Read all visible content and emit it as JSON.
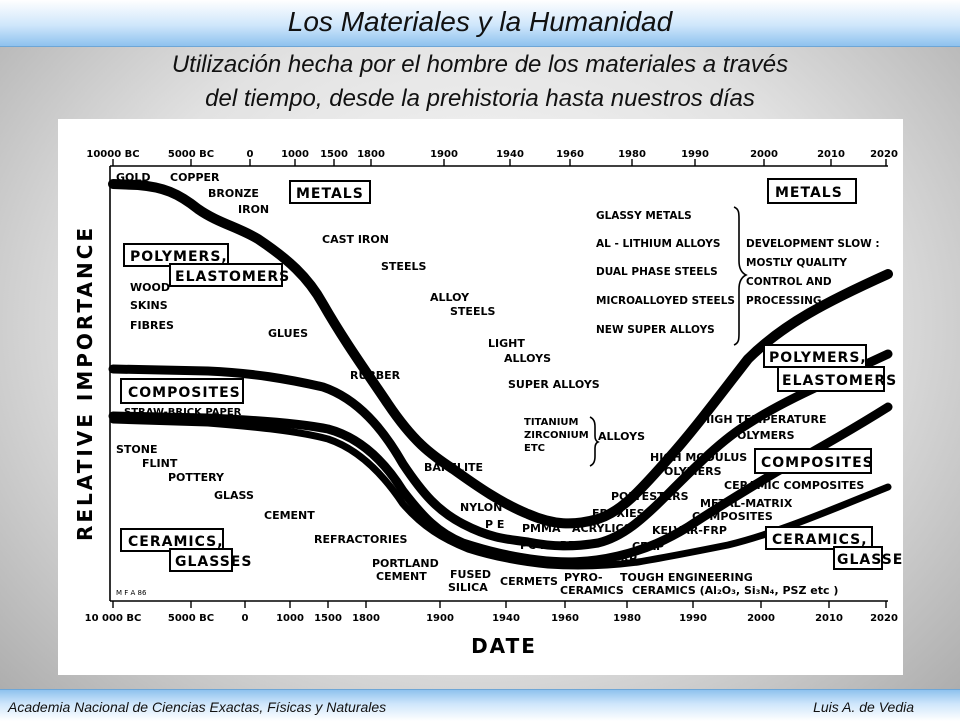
{
  "slide": {
    "title": "Los Materiales y la Humanidad",
    "subtitle_line1": "Utilización hecha por el hombre de los materiales a través",
    "subtitle_line2": "del tiempo, desde la prehistoria hasta nuestros días",
    "footer_left": "Academia Nacional de Ciencias Exactas, Físicas y Naturales",
    "footer_right": "Luis A. de Vedia"
  },
  "figure": {
    "xlabel": "DATE",
    "ylabel": "RELATIVE IMPORTANCE",
    "credit": "M F A 86",
    "ticks_top": [
      "10000 BC",
      "5000 BC",
      "0",
      "1000",
      "1500",
      "1800",
      "1900",
      "1940",
      "1960",
      "1980",
      "1990",
      "2000",
      "2010",
      "2020"
    ],
    "ticks_bottom": [
      "10 000 BC",
      "5000 BC",
      "0",
      "1000",
      "1500",
      "1800",
      "1900",
      "1940",
      "1960",
      "1980",
      "1990",
      "2000",
      "2010",
      "2020"
    ],
    "boxes": {
      "metals_left": "METALS",
      "metals_right": "METALS",
      "polymers_left_1": "POLYMERS,",
      "polymers_left_2": "ELASTOMERS",
      "polymers_right_1": "POLYMERS,",
      "polymers_right_2": "ELASTOMERS",
      "composites_left": "COMPOSITES",
      "composites_right": "COMPOSITES",
      "ceramics_left_1": "CERAMICS,",
      "ceramics_left_2": "GLASSES",
      "ceramics_right_1": "CERAMICS,",
      "ceramics_right_2": "GLASSES"
    },
    "labels": {
      "gold": "GOLD",
      "copper": "COPPER",
      "bronze": "BRONZE",
      "iron": "IRON",
      "cast_iron": "CAST IRON",
      "steels": "STEELS",
      "alloy": "ALLOY",
      "alloy_steels": "STEELS",
      "light": "LIGHT",
      "light_alloys": "ALLOYS",
      "super_alloys": "SUPER ALLOYS",
      "titanium": "TITANIUM",
      "zirconium": "ZIRCONIUM",
      "etc": "ETC",
      "ti_alloys": "ALLOYS",
      "wood": "WOOD",
      "skins": "SKINS",
      "fibres": "FIBRES",
      "glues": "GLUES",
      "rubber": "RUBBER",
      "bakelite": "BAKELITE",
      "nylon": "NYLON",
      "pe": "P E",
      "pmma": "PMMA",
      "pc_ps_pp": "PC  PS  PP",
      "acrylics": "ACRYLICS",
      "epoxies": "EPOXIES",
      "polyesters": "POLYESTERS",
      "high_modulus_1": "HIGH MODULUS",
      "high_modulus_2": "POLYMERS",
      "high_temp_1": "HIGH TEMPERATURE",
      "high_temp_2": "POLYMERS",
      "straw_brick": "STRAW-BRICK  PAPER",
      "stone": "STONE",
      "flint": "FLINT",
      "pottery": "POTTERY",
      "glass": "GLASS",
      "cement": "CEMENT",
      "refractories": "REFRACTORIES",
      "portland_1": "PORTLAND",
      "portland_2": "CEMENT",
      "fused_1": "FUSED",
      "fused_2": "SILICA",
      "cermets": "CERMETS",
      "pyro_1": "PYRO-",
      "pyro_2": "CERAMICS",
      "tough": "TOUGH ENGINEERING",
      "ceramics_formula": "CERAMICS (Al₂O₃, Si₃N₄, PSZ etc )",
      "gfrp": "GFRP",
      "cfrp": "CFRP",
      "kelvar": "KELVAR-FRP",
      "metal_matrix_1": "METAL-MATRIX",
      "metal_matrix_2": "COMPOSITES",
      "ceramic_composites": "CERAMIC COMPOSITES",
      "glassy_metals": "GLASSY METALS",
      "al_lithium": "AL - LITHIUM  ALLOYS",
      "dual_phase": "DUAL PHASE STEELS",
      "microalloyed": "MICROALLOYED STEELS",
      "new_super": "NEW SUPER ALLOYS",
      "dev_slow_1": "DEVELOPMENT SLOW :",
      "dev_slow_2": "MOSTLY QUALITY",
      "dev_slow_3": "CONTROL AND",
      "dev_slow_4": "PROCESSING"
    }
  }
}
